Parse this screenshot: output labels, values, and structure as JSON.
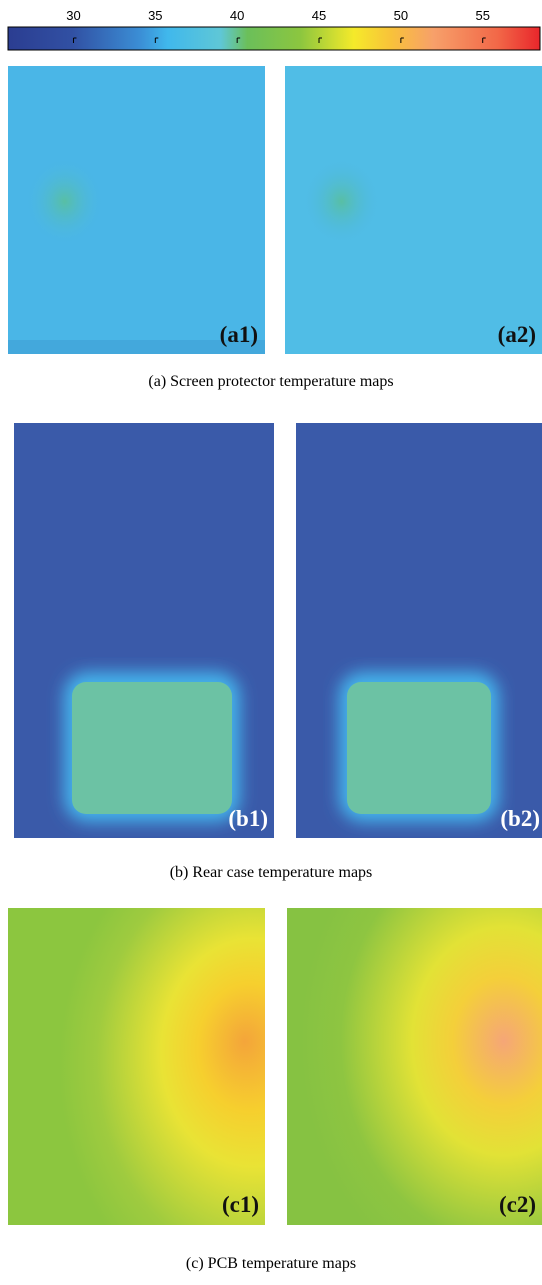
{
  "colorbar": {
    "lim": [
      26,
      58.5
    ],
    "ticks": [
      30,
      35,
      40,
      45,
      50,
      55
    ]
  },
  "figures": [
    {
      "caption": "(a) Screen protector temperature maps",
      "panels": [
        "(a1)",
        "(a2)"
      ]
    },
    {
      "caption": "(b) Rear case temperature maps",
      "panels": [
        "(b1)",
        "(b2)"
      ]
    },
    {
      "caption": "(c) PCB temperature maps",
      "panels": [
        "(c1)",
        "(c2)"
      ]
    }
  ]
}
